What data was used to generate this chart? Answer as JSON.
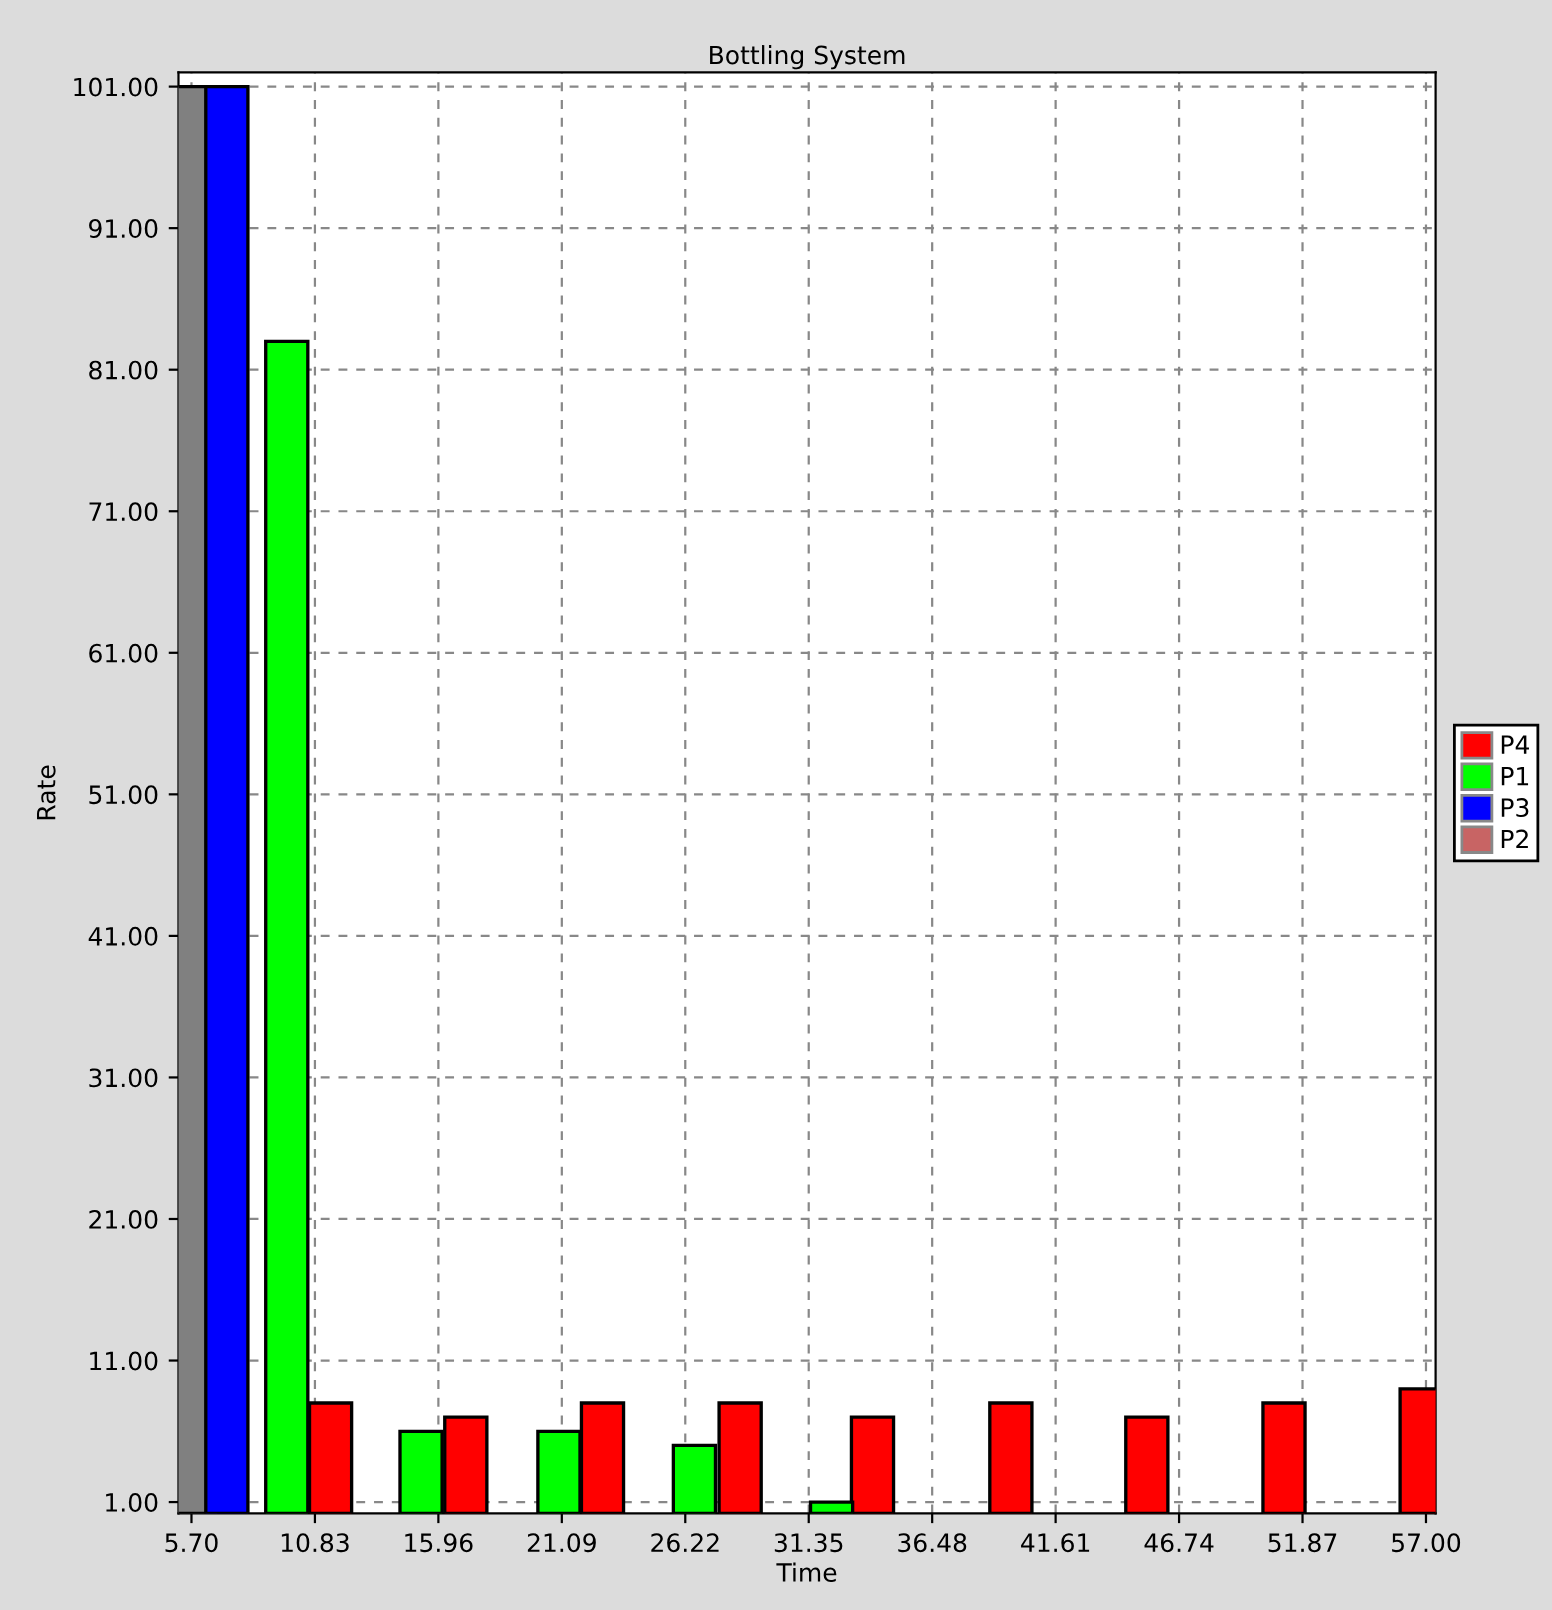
{
  "chart_data": {
    "type": "bar",
    "title": "Bottling System",
    "xlabel": "Time",
    "ylabel": "Rate",
    "xlim": [
      5.16,
      57.4
    ],
    "ylim": [
      0.2,
      102
    ],
    "xticks": [
      {
        "value": 5.7,
        "label": "5.70"
      },
      {
        "value": 10.83,
        "label": "10.83"
      },
      {
        "value": 15.96,
        "label": "15.96"
      },
      {
        "value": 21.09,
        "label": "21.09"
      },
      {
        "value": 26.22,
        "label": "26.22"
      },
      {
        "value": 31.35,
        "label": "31.35"
      },
      {
        "value": 36.48,
        "label": "36.48"
      },
      {
        "value": 41.61,
        "label": "41.61"
      },
      {
        "value": 46.74,
        "label": "46.74"
      },
      {
        "value": 51.87,
        "label": "51.87"
      },
      {
        "value": 57.0,
        "label": "57.00"
      }
    ],
    "yticks": [
      {
        "value": 1,
        "label": "1.00"
      },
      {
        "value": 11,
        "label": "11.00"
      },
      {
        "value": 21,
        "label": "21.00"
      },
      {
        "value": 31,
        "label": "31.00"
      },
      {
        "value": 41,
        "label": "41.00"
      },
      {
        "value": 51,
        "label": "51.00"
      },
      {
        "value": 61,
        "label": "61.00"
      },
      {
        "value": 71,
        "label": "71.00"
      },
      {
        "value": 81,
        "label": "81.00"
      },
      {
        "value": 91,
        "label": "91.00"
      },
      {
        "value": 101,
        "label": "101.00"
      }
    ],
    "grid": true,
    "legend": "right",
    "series": [
      {
        "color": "#808080",
        "x": [
          5.9
        ],
        "values": [
          101
        ]
      },
      {
        "name": "P4",
        "color": "#ff0000",
        "x": [
          11.48,
          17.1,
          22.78,
          28.5,
          34.0,
          39.75,
          45.4,
          51.1,
          56.8
        ],
        "values": [
          8,
          7,
          8,
          8,
          7,
          8,
          7,
          8,
          9
        ]
      },
      {
        "name": "P1",
        "color": "#00ff00",
        "x": [
          9.66,
          15.24,
          20.97,
          26.6,
          32.3
        ],
        "values": [
          83,
          6,
          6,
          5,
          1
        ]
      },
      {
        "name": "P3",
        "color": "#0000ff",
        "x": [
          7.17
        ],
        "values": [
          101
        ]
      },
      {
        "name": "P2",
        "color": "#c86464"
      }
    ]
  }
}
